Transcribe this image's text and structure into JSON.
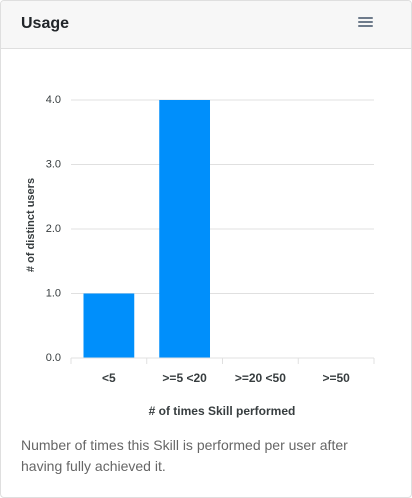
{
  "header": {
    "title": "Usage",
    "menu_icon": "hamburger-menu-icon"
  },
  "chart_data": {
    "type": "bar",
    "categories": [
      "<5",
      ">=5 <20",
      ">=20 <50",
      ">=50"
    ],
    "values": [
      1,
      4,
      0,
      0
    ],
    "ylim": [
      0,
      4
    ],
    "yticks": [
      "0.0",
      "1.0",
      "2.0",
      "3.0",
      "4.0"
    ],
    "xlabel": "# of times Skill performed",
    "ylabel": "# of distinct users",
    "grid": true,
    "bar_color": "#008ffb"
  },
  "description": "Number of times this Skill is performed per user after having fully achieved it."
}
